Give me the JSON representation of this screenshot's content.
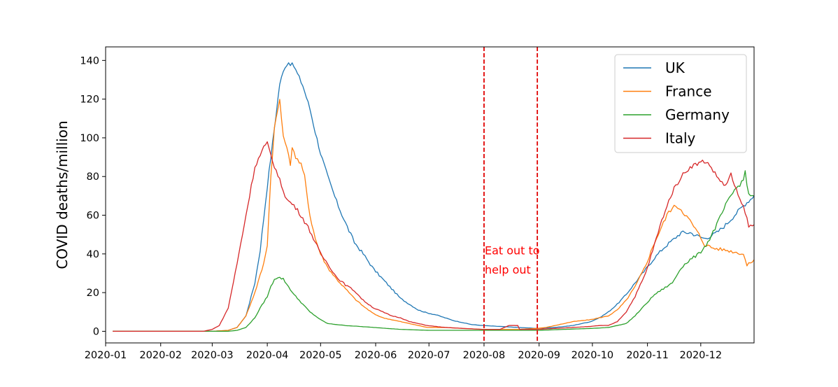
{
  "chart_data": {
    "type": "line",
    "title": "",
    "xlabel": "",
    "ylabel": "COVID deaths/million",
    "x_ticks": [
      "2020-01",
      "2020-02",
      "2020-03",
      "2020-04",
      "2020-05",
      "2020-06",
      "2020-07",
      "2020-08",
      "2020-09",
      "2020-10",
      "2020-11",
      "2020-12"
    ],
    "y_ticks": [
      0,
      20,
      40,
      60,
      80,
      100,
      120,
      140
    ],
    "xlim": [
      "2020-01-01",
      "2020-12-31"
    ],
    "ylim": [
      -6,
      147
    ],
    "grid": false,
    "legend_position": "top-right",
    "series": [
      {
        "name": "UK",
        "color": "#1f77b4",
        "points": [
          [
            "2020-01-05",
            0
          ],
          [
            "2020-03-01",
            0
          ],
          [
            "2020-03-10",
            0.5
          ],
          [
            "2020-03-15",
            2
          ],
          [
            "2020-03-20",
            8
          ],
          [
            "2020-03-25",
            25
          ],
          [
            "2020-03-28",
            42
          ],
          [
            "2020-04-01",
            75
          ],
          [
            "2020-04-05",
            105
          ],
          [
            "2020-04-08",
            128
          ],
          [
            "2020-04-11",
            137
          ],
          [
            "2020-04-13",
            139
          ],
          [
            "2020-04-16",
            137
          ],
          [
            "2020-04-18",
            133
          ],
          [
            "2020-04-21",
            127
          ],
          [
            "2020-04-25",
            115
          ],
          [
            "2020-04-28",
            103
          ],
          [
            "2020-05-01",
            92
          ],
          [
            "2020-05-05",
            80
          ],
          [
            "2020-05-10",
            67
          ],
          [
            "2020-05-15",
            56
          ],
          [
            "2020-05-20",
            46
          ],
          [
            "2020-05-25",
            40
          ],
          [
            "2020-05-31",
            32
          ],
          [
            "2020-06-05",
            27
          ],
          [
            "2020-06-10",
            22
          ],
          [
            "2020-06-15",
            17
          ],
          [
            "2020-06-20",
            14
          ],
          [
            "2020-06-25",
            11
          ],
          [
            "2020-06-30",
            9.5
          ],
          [
            "2020-07-05",
            8.5
          ],
          [
            "2020-07-10",
            7
          ],
          [
            "2020-07-15",
            5.5
          ],
          [
            "2020-07-20",
            4.5
          ],
          [
            "2020-07-25",
            3.5
          ],
          [
            "2020-07-31",
            3
          ],
          [
            "2020-08-10",
            2.5
          ],
          [
            "2020-08-20",
            2
          ],
          [
            "2020-08-31",
            1.5
          ],
          [
            "2020-09-10",
            2
          ],
          [
            "2020-09-20",
            3
          ],
          [
            "2020-09-30",
            5
          ],
          [
            "2020-10-05",
            7
          ],
          [
            "2020-10-10",
            10
          ],
          [
            "2020-10-15",
            14
          ],
          [
            "2020-10-20",
            19
          ],
          [
            "2020-10-25",
            25
          ],
          [
            "2020-10-31",
            32
          ],
          [
            "2020-11-05",
            38
          ],
          [
            "2020-11-10",
            43
          ],
          [
            "2020-11-15",
            47
          ],
          [
            "2020-11-20",
            51
          ],
          [
            "2020-11-25",
            51
          ],
          [
            "2020-11-30",
            49
          ],
          [
            "2020-12-03",
            48
          ],
          [
            "2020-12-06",
            49
          ],
          [
            "2020-12-10",
            51
          ],
          [
            "2020-12-15",
            55
          ],
          [
            "2020-12-20",
            60
          ],
          [
            "2020-12-25",
            65
          ],
          [
            "2020-12-31",
            70
          ]
        ]
      },
      {
        "name": "France",
        "color": "#ff7f0e",
        "points": [
          [
            "2020-01-05",
            0
          ],
          [
            "2020-03-01",
            0
          ],
          [
            "2020-03-10",
            0.5
          ],
          [
            "2020-03-15",
            2
          ],
          [
            "2020-03-20",
            8
          ],
          [
            "2020-03-25",
            20
          ],
          [
            "2020-03-30",
            35
          ],
          [
            "2020-04-01",
            45
          ],
          [
            "2020-04-03",
            80
          ],
          [
            "2020-04-05",
            105
          ],
          [
            "2020-04-07",
            115
          ],
          [
            "2020-04-08",
            120
          ],
          [
            "2020-04-10",
            100
          ],
          [
            "2020-04-12",
            96
          ],
          [
            "2020-04-14",
            85
          ],
          [
            "2020-04-15",
            96
          ],
          [
            "2020-04-17",
            90
          ],
          [
            "2020-04-20",
            86
          ],
          [
            "2020-04-22",
            80
          ],
          [
            "2020-04-25",
            60
          ],
          [
            "2020-04-28",
            48
          ],
          [
            "2020-05-01",
            40
          ],
          [
            "2020-05-05",
            33
          ],
          [
            "2020-05-10",
            27
          ],
          [
            "2020-05-15",
            22
          ],
          [
            "2020-05-20",
            17
          ],
          [
            "2020-05-25",
            13
          ],
          [
            "2020-05-31",
            9
          ],
          [
            "2020-06-05",
            7
          ],
          [
            "2020-06-10",
            6
          ],
          [
            "2020-06-15",
            5
          ],
          [
            "2020-06-20",
            4
          ],
          [
            "2020-06-25",
            3
          ],
          [
            "2020-06-30",
            2
          ],
          [
            "2020-07-10",
            2
          ],
          [
            "2020-07-20",
            1.5
          ],
          [
            "2020-07-31",
            1
          ],
          [
            "2020-08-10",
            1
          ],
          [
            "2020-08-20",
            1
          ],
          [
            "2020-08-31",
            1.5
          ],
          [
            "2020-09-05",
            2
          ],
          [
            "2020-09-10",
            3
          ],
          [
            "2020-09-15",
            4
          ],
          [
            "2020-09-20",
            5
          ],
          [
            "2020-09-25",
            5.5
          ],
          [
            "2020-09-30",
            6
          ],
          [
            "2020-10-05",
            7
          ],
          [
            "2020-10-10",
            8
          ],
          [
            "2020-10-15",
            11
          ],
          [
            "2020-10-20",
            16
          ],
          [
            "2020-10-25",
            23
          ],
          [
            "2020-10-31",
            34
          ],
          [
            "2020-11-05",
            46
          ],
          [
            "2020-11-10",
            56
          ],
          [
            "2020-11-13",
            62
          ],
          [
            "2020-11-17",
            65
          ],
          [
            "2020-11-20",
            63
          ],
          [
            "2020-11-25",
            57
          ],
          [
            "2020-11-30",
            50
          ],
          [
            "2020-12-03",
            45
          ],
          [
            "2020-12-08",
            43
          ],
          [
            "2020-12-15",
            42
          ],
          [
            "2020-12-20",
            41
          ],
          [
            "2020-12-25",
            40
          ],
          [
            "2020-12-27",
            34
          ],
          [
            "2020-12-31",
            37
          ]
        ]
      },
      {
        "name": "Germany",
        "color": "#2ca02c",
        "points": [
          [
            "2020-01-05",
            0
          ],
          [
            "2020-03-10",
            0
          ],
          [
            "2020-03-15",
            0.5
          ],
          [
            "2020-03-20",
            2
          ],
          [
            "2020-03-25",
            7
          ],
          [
            "2020-03-28",
            12
          ],
          [
            "2020-04-01",
            18
          ],
          [
            "2020-04-03",
            23
          ],
          [
            "2020-04-05",
            27
          ],
          [
            "2020-04-07",
            28
          ],
          [
            "2020-04-10",
            27
          ],
          [
            "2020-04-13",
            23
          ],
          [
            "2020-04-16",
            19
          ],
          [
            "2020-04-20",
            15
          ],
          [
            "2020-04-25",
            10
          ],
          [
            "2020-05-01",
            6
          ],
          [
            "2020-05-05",
            4
          ],
          [
            "2020-05-15",
            3
          ],
          [
            "2020-05-31",
            2
          ],
          [
            "2020-06-15",
            1
          ],
          [
            "2020-07-01",
            0.5
          ],
          [
            "2020-08-01",
            0.5
          ],
          [
            "2020-09-01",
            0.5
          ],
          [
            "2020-09-15",
            1
          ],
          [
            "2020-10-01",
            1.5
          ],
          [
            "2020-10-10",
            2
          ],
          [
            "2020-10-20",
            4
          ],
          [
            "2020-10-25",
            8
          ],
          [
            "2020-10-31",
            14
          ],
          [
            "2020-11-05",
            19
          ],
          [
            "2020-11-10",
            22
          ],
          [
            "2020-11-15",
            25
          ],
          [
            "2020-11-20",
            33
          ],
          [
            "2020-11-25",
            37
          ],
          [
            "2020-11-30",
            40
          ],
          [
            "2020-12-05",
            46
          ],
          [
            "2020-12-10",
            55
          ],
          [
            "2020-12-15",
            65
          ],
          [
            "2020-12-20",
            73
          ],
          [
            "2020-12-25",
            78
          ],
          [
            "2020-12-26",
            83
          ],
          [
            "2020-12-28",
            70
          ],
          [
            "2020-12-31",
            70
          ]
        ]
      },
      {
        "name": "Italy",
        "color": "#d62728",
        "points": [
          [
            "2020-01-05",
            0
          ],
          [
            "2020-02-25",
            0
          ],
          [
            "2020-03-01",
            1
          ],
          [
            "2020-03-05",
            3
          ],
          [
            "2020-03-10",
            12
          ],
          [
            "2020-03-15",
            35
          ],
          [
            "2020-03-20",
            60
          ],
          [
            "2020-03-25",
            85
          ],
          [
            "2020-03-30",
            95
          ],
          [
            "2020-04-01",
            97
          ],
          [
            "2020-04-04",
            88
          ],
          [
            "2020-04-08",
            78
          ],
          [
            "2020-04-12",
            68
          ],
          [
            "2020-04-16",
            65
          ],
          [
            "2020-04-20",
            60
          ],
          [
            "2020-04-25",
            52
          ],
          [
            "2020-04-28",
            46
          ],
          [
            "2020-05-01",
            40
          ],
          [
            "2020-05-05",
            35
          ],
          [
            "2020-05-10",
            28
          ],
          [
            "2020-05-15",
            24
          ],
          [
            "2020-05-20",
            21
          ],
          [
            "2020-05-25",
            16
          ],
          [
            "2020-05-31",
            12
          ],
          [
            "2020-06-05",
            10
          ],
          [
            "2020-06-10",
            8
          ],
          [
            "2020-06-15",
            7
          ],
          [
            "2020-06-20",
            5
          ],
          [
            "2020-06-25",
            4
          ],
          [
            "2020-06-30",
            3
          ],
          [
            "2020-07-10",
            2
          ],
          [
            "2020-07-20",
            1.5
          ],
          [
            "2020-07-31",
            1
          ],
          [
            "2020-08-05",
            1
          ],
          [
            "2020-08-10",
            1
          ],
          [
            "2020-08-15",
            3
          ],
          [
            "2020-08-20",
            3
          ],
          [
            "2020-08-21",
            1
          ],
          [
            "2020-08-31",
            1
          ],
          [
            "2020-09-10",
            1.5
          ],
          [
            "2020-09-20",
            2
          ],
          [
            "2020-09-30",
            2.5
          ],
          [
            "2020-10-05",
            3
          ],
          [
            "2020-10-10",
            3
          ],
          [
            "2020-10-15",
            5
          ],
          [
            "2020-10-20",
            10
          ],
          [
            "2020-10-25",
            18
          ],
          [
            "2020-10-31",
            30
          ],
          [
            "2020-11-05",
            45
          ],
          [
            "2020-11-10",
            60
          ],
          [
            "2020-11-15",
            72
          ],
          [
            "2020-11-20",
            80
          ],
          [
            "2020-11-25",
            85
          ],
          [
            "2020-11-30",
            87
          ],
          [
            "2020-12-03",
            88
          ],
          [
            "2020-12-06",
            86
          ],
          [
            "2020-12-10",
            80
          ],
          [
            "2020-12-15",
            75
          ],
          [
            "2020-12-18",
            81
          ],
          [
            "2020-12-22",
            70
          ],
          [
            "2020-12-26",
            62
          ],
          [
            "2020-12-28",
            54
          ],
          [
            "2020-12-31",
            55
          ]
        ]
      }
    ],
    "vlines": [
      {
        "x": "2020-08-01",
        "color": "#e00000",
        "style": "dashed"
      },
      {
        "x": "2020-08-31",
        "color": "#e00000",
        "style": "dashed"
      }
    ],
    "annotation": {
      "lines": [
        "Eat out to",
        "help out"
      ],
      "x": "2020-08-01",
      "y_lines": [
        42,
        32
      ],
      "color": "#ff0000"
    }
  }
}
